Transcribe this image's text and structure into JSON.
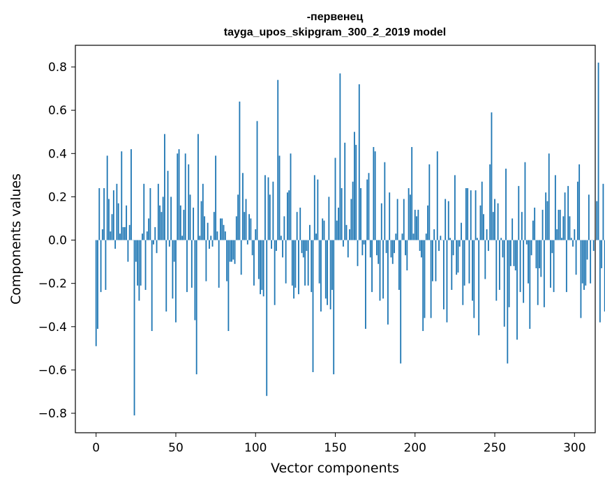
{
  "chart_data": {
    "type": "bar",
    "title": "-первенец",
    "subtitle": "tayga_upos_skipgram_300_2_2019 model",
    "xlabel": "Vector components",
    "ylabel": "Components values",
    "xlim": [
      -13,
      313
    ],
    "ylim": [
      -0.89,
      0.9
    ],
    "xticks": [
      0,
      50,
      100,
      150,
      200,
      250,
      300
    ],
    "yticks": [
      -0.8,
      -0.6,
      -0.4,
      -0.2,
      0.0,
      0.2,
      0.4,
      0.6,
      0.8
    ],
    "xtick_labels": [
      "0",
      "50",
      "100",
      "150",
      "200",
      "250",
      "300"
    ],
    "ytick_labels": [
      "−0.8",
      "−0.6",
      "−0.4",
      "−0.2",
      "0.0",
      "0.2",
      "0.4",
      "0.6",
      "0.8"
    ],
    "grid": false,
    "bar_color": "#1f77b4",
    "values": [
      -0.49,
      -0.41,
      0.24,
      -0.24,
      0.05,
      0.24,
      -0.23,
      0.39,
      0.19,
      0.04,
      0.12,
      0.23,
      -0.04,
      0.26,
      0.17,
      0.03,
      0.41,
      0.06,
      0.06,
      0.16,
      -0.1,
      0.07,
      0.42,
      0.0,
      -0.81,
      -0.1,
      -0.21,
      -0.28,
      -0.21,
      0.03,
      0.26,
      -0.23,
      0.04,
      0.1,
      0.24,
      -0.42,
      -0.02,
      0.06,
      -0.06,
      0.26,
      0.16,
      0.13,
      0.2,
      0.49,
      -0.33,
      0.32,
      -0.03,
      0.2,
      -0.27,
      -0.1,
      -0.38,
      0.4,
      0.42,
      0.16,
      0.02,
      0.14,
      0.4,
      -0.24,
      0.35,
      0.21,
      -0.22,
      0.15,
      -0.37,
      -0.62,
      0.49,
      0.02,
      0.18,
      0.26,
      0.11,
      -0.19,
      0.08,
      -0.04,
      0.02,
      -0.03,
      0.13,
      0.39,
      0.04,
      -0.22,
      0.1,
      0.1,
      0.07,
      0.04,
      -0.19,
      -0.42,
      -0.1,
      -0.1,
      -0.09,
      -0.11,
      0.11,
      0.21,
      0.64,
      -0.16,
      0.31,
      0.13,
      0.19,
      -0.02,
      0.12,
      0.1,
      -0.07,
      -0.21,
      0.05,
      0.55,
      -0.18,
      -0.25,
      -0.23,
      -0.26,
      0.3,
      -0.72,
      0.29,
      0.21,
      -0.04,
      0.27,
      -0.3,
      -0.05,
      0.74,
      0.39,
      0.02,
      -0.08,
      0.11,
      -0.2,
      0.22,
      0.23,
      0.4,
      -0.21,
      -0.27,
      -0.22,
      0.13,
      -0.25,
      0.15,
      -0.06,
      -0.08,
      -0.21,
      -0.05,
      -0.21,
      0.07,
      -0.24,
      -0.61,
      0.3,
      0.03,
      0.28,
      -0.2,
      -0.33,
      0.1,
      0.09,
      -0.27,
      -0.3,
      0.2,
      -0.32,
      -0.23,
      -0.62,
      0.38,
      0.09,
      0.15,
      0.77,
      0.24,
      -0.03,
      0.45,
      0.07,
      -0.08,
      0.05,
      0.19,
      0.27,
      0.5,
      0.44,
      -0.12,
      0.72,
      0.24,
      -0.07,
      -0.02,
      -0.41,
      0.28,
      0.31,
      -0.08,
      -0.24,
      0.43,
      0.41,
      -0.07,
      -0.11,
      -0.28,
      0.17,
      -0.27,
      0.36,
      -0.06,
      -0.39,
      0.22,
      -0.08,
      -0.11,
      -0.06,
      0.03,
      0.19,
      -0.23,
      -0.57,
      0.03,
      0.19,
      -0.07,
      -0.14,
      0.24,
      0.21,
      0.43,
      0.03,
      0.14,
      0.11,
      0.14,
      -0.05,
      -0.08,
      -0.42,
      -0.36,
      0.03,
      0.16,
      0.35,
      -0.36,
      -0.19,
      0.05,
      -0.19,
      0.41,
      -0.05,
      0.02,
      0.0,
      -0.32,
      0.19,
      -0.38,
      0.18,
      0.01,
      -0.23,
      -0.07,
      0.3,
      -0.16,
      -0.15,
      -0.03,
      0.08,
      -0.3,
      -0.21,
      0.24,
      0.24,
      -0.2,
      0.23,
      -0.28,
      -0.36,
      0.23,
      0.01,
      -0.44,
      0.16,
      0.27,
      0.12,
      -0.18,
      0.05,
      -0.05,
      0.35,
      0.59,
      0.13,
      0.19,
      -0.28,
      0.17,
      -0.23,
      0.01,
      -0.08,
      -0.4,
      0.33,
      -0.57,
      -0.31,
      -0.12,
      0.1,
      -0.12,
      -0.14,
      -0.46,
      0.25,
      -0.24,
      0.13,
      -0.29,
      0.36,
      -0.02,
      -0.2,
      -0.41,
      -0.07,
      0.09,
      0.15,
      -0.13,
      -0.3,
      -0.13,
      -0.17,
      0.14,
      -0.31,
      0.22,
      0.18,
      0.4,
      -0.22,
      -0.06,
      -0.24,
      0.3,
      0.05,
      0.14,
      0.14,
      0.01,
      0.11,
      0.22,
      -0.24,
      0.25,
      0.11,
      0.01,
      -0.03,
      0.05,
      -0.16,
      0.27,
      0.35,
      -0.36,
      -0.2,
      -0.23,
      -0.21,
      -0.09,
      0.21,
      -0.2,
      0.0,
      -0.05,
      0.0,
      0.18,
      0.82,
      -0.38,
      -0.13,
      0.26,
      -0.33
    ]
  }
}
